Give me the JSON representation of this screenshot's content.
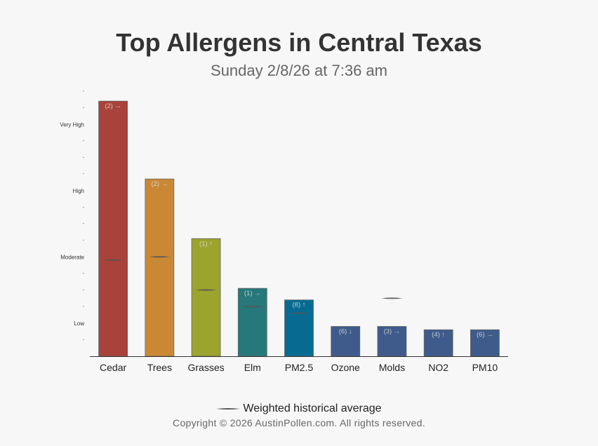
{
  "title": "Top Allergens in Central Texas",
  "subtitle": "Sunday 2/8/26 at 7:36 am",
  "legend_label": "Weighted historical average",
  "copyright": "Copyright © 2026 AustinPollen.com.  All rights reserved.",
  "chart_data": {
    "type": "bar",
    "categories": [
      "Cedar",
      "Trees",
      "Grasses",
      "Elm",
      "PM2.5",
      "Ozone",
      "Molds",
      "NO2",
      "PM10"
    ],
    "values": [
      15.4,
      10.7,
      7.1,
      4.1,
      3.4,
      1.8,
      1.8,
      1.6,
      1.6
    ],
    "bar_labels": [
      "(2) →",
      "(2) →",
      "(1) ↑",
      "(1) →",
      "(8) ↑",
      "(6) ↓",
      "(3) →",
      "(4) ↑",
      "(6) →"
    ],
    "historical_average": [
      5.8,
      6.0,
      4.0,
      3.0,
      2.6,
      null,
      3.5,
      null,
      null
    ],
    "colors": [
      "#a9423a",
      "#cb8834",
      "#9ba42c",
      "#27787a",
      "#076b91",
      "#3e5b8b",
      "#3e5b8b",
      "#3e5b8b",
      "#3e5b8b"
    ],
    "y_tick_labels": [
      {
        "value": 2,
        "label": "Low"
      },
      {
        "value": 6,
        "label": "Moderate"
      },
      {
        "value": 10,
        "label": "High"
      },
      {
        "value": 14,
        "label": "Very High"
      }
    ],
    "ylim": [
      0,
      16
    ],
    "grid": false
  }
}
